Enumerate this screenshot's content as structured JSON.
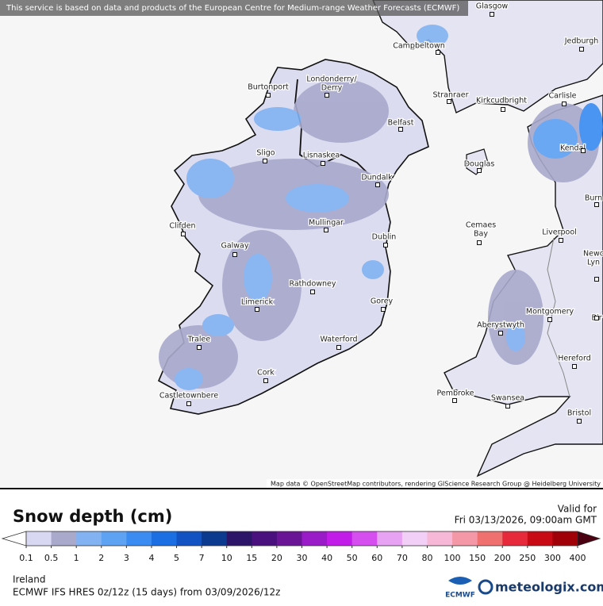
{
  "notice": "This service is based on data and products of the European Centre for Medium-range Weather Forecasts (ECMWF)",
  "places": [
    {
      "lines": [
        "Glasgow"
      ]
    },
    {
      "lines": [
        "Campbeltown"
      ]
    },
    {
      "lines": [
        "Jedburgh"
      ]
    },
    {
      "lines": [
        "Burtonport"
      ]
    },
    {
      "lines": [
        "Londonderry/",
        "Derry"
      ]
    },
    {
      "lines": [
        "Stranraer"
      ]
    },
    {
      "lines": [
        "Kirkcudbright"
      ]
    },
    {
      "lines": [
        "Carlisle"
      ]
    },
    {
      "lines": [
        "Belfast"
      ]
    },
    {
      "lines": [
        "Sligo"
      ]
    },
    {
      "lines": [
        "Lisnaskea"
      ]
    },
    {
      "lines": [
        "Kendal"
      ]
    },
    {
      "lines": [
        "Douglas"
      ]
    },
    {
      "lines": [
        "Dundalk"
      ]
    },
    {
      "lines": [
        "Burn"
      ]
    },
    {
      "lines": [
        "Clifden"
      ]
    },
    {
      "lines": [
        "Mullingar"
      ]
    },
    {
      "lines": [
        "Cemaes",
        "Bay"
      ]
    },
    {
      "lines": [
        "Liverpool"
      ]
    },
    {
      "lines": [
        "Dublin"
      ]
    },
    {
      "lines": [
        "Galway"
      ]
    },
    {
      "lines": [
        "Newc",
        "Lyn"
      ]
    },
    {
      "lines": [
        "Rathdowney"
      ]
    },
    {
      "lines": [
        "Limerick"
      ]
    },
    {
      "lines": [
        "Gorey"
      ]
    },
    {
      "lines": [
        "Montgomery"
      ]
    },
    {
      "lines": [
        "Bir"
      ]
    },
    {
      "lines": [
        "Aberystwyth"
      ]
    },
    {
      "lines": [
        "Tralee"
      ]
    },
    {
      "lines": [
        "Waterford"
      ]
    },
    {
      "lines": [
        "Hereford"
      ]
    },
    {
      "lines": [
        "Cork"
      ]
    },
    {
      "lines": [
        "Pembroke"
      ]
    },
    {
      "lines": [
        "Castletownbere"
      ]
    },
    {
      "lines": [
        "Swansea"
      ]
    },
    {
      "lines": [
        "Bristol"
      ]
    }
  ],
  "attribution": "Map data © OpenStreetMap contributors, rendering GIScience Research Group @ Heidelberg University",
  "legend": {
    "title": "Snow depth (cm)",
    "ticks": [
      0.1,
      0.5,
      1,
      2,
      3,
      4,
      5,
      7,
      10,
      15,
      20,
      30,
      40,
      50,
      60,
      70,
      80,
      100,
      150,
      200,
      250,
      300,
      400
    ],
    "under_color": "#ffffff",
    "over_color": "#4a0010",
    "colors": [
      "#d8d8f2",
      "#a9a9cc",
      "#82b2f2",
      "#5ea2f4",
      "#3a8cf2",
      "#1c6fe2",
      "#1252c2",
      "#0c3a8e",
      "#2c1468",
      "#4a107e",
      "#6a1496",
      "#9a1cc8",
      "#c21ce8",
      "#d64ef0",
      "#e8a2f4",
      "#f2cff6",
      "#f6b8d6",
      "#f498a8",
      "#f07070",
      "#e62a3c",
      "#c80a14",
      "#a00008",
      "#7c0008"
    ]
  },
  "valid": {
    "label": "Valid for",
    "time": "Fri 03/13/2026, 09:00am GMT"
  },
  "region": "Ireland",
  "model": "ECMWF IFS HRES 0z/12z (15 days) from 03/09/2026/12z",
  "logos": {
    "ecmwf": "ECMWF",
    "brand": "meteologix.com"
  }
}
